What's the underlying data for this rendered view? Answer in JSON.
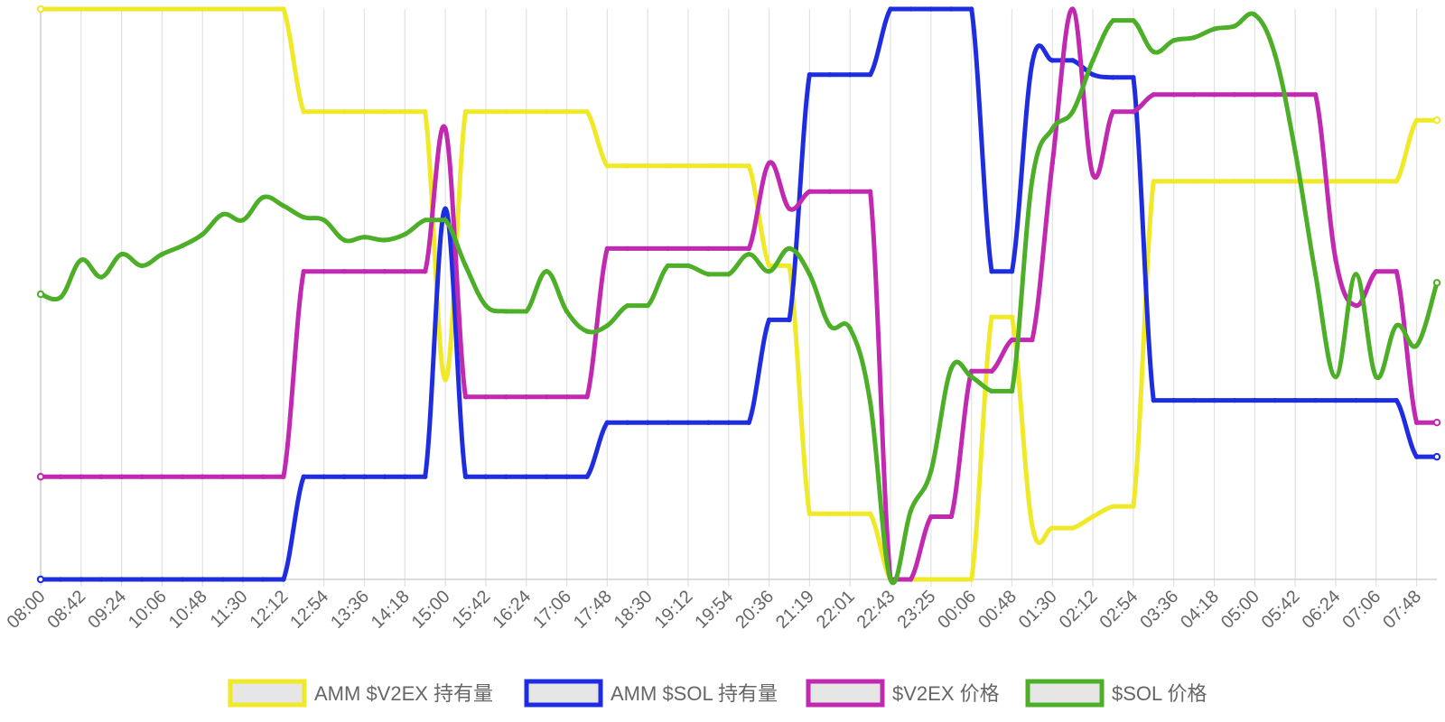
{
  "chart_data": {
    "type": "line",
    "title": "",
    "xlabel": "",
    "ylabel": "",
    "x": [
      "08:00",
      "08:21",
      "08:42",
      "09:03",
      "09:24",
      "09:45",
      "10:06",
      "10:27",
      "10:48",
      "11:09",
      "11:30",
      "11:51",
      "12:12",
      "12:33",
      "12:54",
      "13:15",
      "13:36",
      "13:57",
      "14:18",
      "14:39",
      "15:00",
      "15:21",
      "15:42",
      "16:03",
      "16:24",
      "16:45",
      "17:06",
      "17:27",
      "17:48",
      "18:09",
      "18:30",
      "18:51",
      "19:12",
      "19:33",
      "19:54",
      "20:15",
      "20:36",
      "20:57",
      "21:19",
      "21:40",
      "22:01",
      "22:22",
      "22:43",
      "23:04",
      "23:25",
      "23:46",
      "00:06",
      "00:27",
      "00:48",
      "01:09",
      "01:30",
      "01:51",
      "02:12",
      "02:33",
      "02:54",
      "03:15",
      "03:36",
      "03:57",
      "04:18",
      "04:39",
      "05:00",
      "05:21",
      "05:42",
      "06:03",
      "06:24",
      "06:45",
      "07:06",
      "07:27",
      "07:48",
      "07:59"
    ],
    "x_tick_labels": [
      "08:00",
      "08:42",
      "09:24",
      "10:06",
      "10:48",
      "11:30",
      "12:12",
      "12:54",
      "13:36",
      "14:18",
      "15:00",
      "15:42",
      "16:24",
      "17:06",
      "17:48",
      "18:30",
      "19:12",
      "19:54",
      "20:36",
      "21:19",
      "22:01",
      "22:43",
      "23:25",
      "00:06",
      "00:48",
      "01:30",
      "02:12",
      "02:54",
      "03:36",
      "04:18",
      "05:00",
      "05:42",
      "06:24",
      "07:06",
      "07:48"
    ],
    "y_axis": "normalized, each series scaled independently; no tick labels shown",
    "grid": "vertical",
    "legend_position": "bottom",
    "series": [
      {
        "name": "AMM $V2EX 持有量",
        "color": "#f0e928",
        "values": [
          100,
          100,
          100,
          100,
          100,
          100,
          100,
          100,
          100,
          100,
          100,
          100,
          100,
          82,
          82,
          82,
          82,
          82,
          82,
          82,
          35,
          82,
          82,
          82,
          82,
          82,
          82,
          82,
          72.5,
          72.5,
          72.5,
          72.5,
          72.5,
          72.5,
          72.5,
          72.5,
          55,
          55,
          11.5,
          11.5,
          11.5,
          11.5,
          0,
          0,
          0,
          0,
          0,
          46,
          46,
          9.5,
          9,
          9,
          11,
          12.8,
          12.8,
          69.8,
          69.8,
          69.8,
          69.8,
          69.8,
          69.8,
          69.8,
          69.8,
          69.8,
          69.8,
          69.8,
          69.8,
          69.8,
          80.5,
          80.5
        ]
      },
      {
        "name": "AMM $SOL 持有量",
        "color": "#1f2de0",
        "values": [
          0,
          0,
          0,
          0,
          0,
          0,
          0,
          0,
          0,
          0,
          0,
          0,
          0,
          18,
          18,
          18,
          18,
          18,
          18,
          18,
          65,
          18,
          18,
          18,
          18,
          18,
          18,
          18,
          27.5,
          27.5,
          27.5,
          27.5,
          27.5,
          27.5,
          27.5,
          27.5,
          45.5,
          45.5,
          88.5,
          88.5,
          88.5,
          88.5,
          100,
          100,
          100,
          100,
          100,
          54,
          54,
          90.5,
          91,
          91,
          88.5,
          88,
          88,
          31.4,
          31.4,
          31.4,
          31.4,
          31.4,
          31.4,
          31.4,
          31.4,
          31.4,
          31.4,
          31.4,
          31.4,
          31.4,
          21.5,
          21.5
        ]
      },
      {
        "name": "$V2EX 价格",
        "color": "#c129b1",
        "values": [
          18,
          18,
          18,
          18,
          18,
          18,
          18,
          18,
          18,
          18,
          18,
          18,
          18,
          54,
          54,
          54,
          54,
          54,
          54,
          54,
          79,
          32,
          32,
          32,
          32,
          32,
          32,
          32,
          58,
          58,
          58,
          58,
          58,
          58,
          58,
          58,
          73,
          65,
          68,
          68,
          68,
          68,
          0,
          0,
          11,
          11,
          36.5,
          36.5,
          42,
          42,
          73,
          100,
          71,
          82,
          82,
          85,
          85,
          85,
          85,
          85,
          85,
          85,
          85,
          85,
          56,
          48,
          54,
          54,
          27.5,
          27.5
        ]
      },
      {
        "name": "$SOL 价格",
        "color": "#4caf27",
        "values": [
          50,
          49.5,
          56,
          53,
          57,
          55,
          57,
          58.5,
          60.5,
          64,
          63,
          67,
          65.5,
          63.5,
          63,
          59.5,
          60,
          59.5,
          60.5,
          63,
          63,
          55,
          48,
          47,
          47,
          54,
          47,
          43.5,
          44.5,
          48,
          48,
          55,
          55,
          53.5,
          53.5,
          57,
          54,
          58,
          53.5,
          44.5,
          44,
          31,
          0,
          12,
          19,
          37,
          35.5,
          33,
          33,
          70,
          79,
          82,
          91,
          98,
          98,
          92.5,
          94.5,
          95,
          96.5,
          97,
          99,
          92,
          75,
          53.5,
          35.5,
          53.5,
          35.5,
          44.5,
          41,
          52
        ]
      }
    ]
  },
  "legend": [
    {
      "label": "AMM $V2EX 持有量",
      "color": "#f0e928"
    },
    {
      "label": "AMM $SOL 持有量",
      "color": "#1f2de0"
    },
    {
      "label": "$V2EX 价格",
      "color": "#c129b1"
    },
    {
      "label": "$SOL 价格",
      "color": "#4caf27"
    }
  ]
}
